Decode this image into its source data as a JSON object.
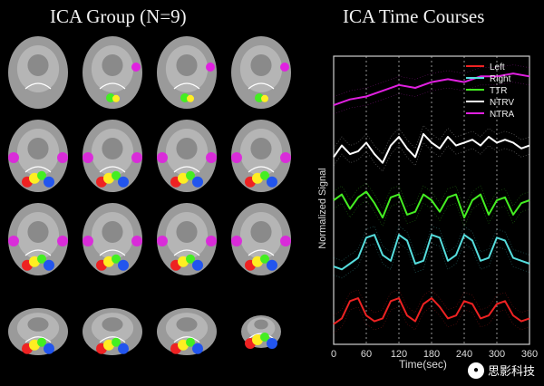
{
  "left_panel": {
    "title": "ICA Group (N=9)"
  },
  "right_panel": {
    "title": "ICA Time Courses"
  },
  "brain_grid": {
    "rows": 4,
    "cols": 4
  },
  "chart_data": {
    "type": "line",
    "title": "ICA Time Courses",
    "xlabel": "Time(sec)",
    "ylabel": "Normalized Signal",
    "xlim": [
      0,
      360
    ],
    "ylim": [
      0,
      10
    ],
    "x_ticks": [
      0,
      60,
      120,
      180,
      240,
      300,
      360
    ],
    "grid": "vertical dashed",
    "legend_position": "top-right",
    "series": [
      {
        "name": "NTRA",
        "color": "#e020e0",
        "x": [
          0,
          30,
          60,
          90,
          120,
          150,
          180,
          210,
          240,
          270,
          300,
          330,
          360
        ],
        "values": [
          8.3,
          8.5,
          8.6,
          8.8,
          9.0,
          8.9,
          9.1,
          9.2,
          9.1,
          9.3,
          9.3,
          9.4,
          9.3
        ]
      },
      {
        "name": "NTRV",
        "color": "#ffffff",
        "x": [
          0,
          15,
          30,
          45,
          60,
          75,
          90,
          105,
          120,
          135,
          150,
          165,
          180,
          195,
          210,
          225,
          240,
          255,
          270,
          285,
          300,
          315,
          330,
          345,
          360
        ],
        "values": [
          6.5,
          6.9,
          6.6,
          6.7,
          7.0,
          6.6,
          6.3,
          6.9,
          7.2,
          6.8,
          6.5,
          7.3,
          7.0,
          6.8,
          7.2,
          6.9,
          7.0,
          7.1,
          6.9,
          7.2,
          7.0,
          7.1,
          7.0,
          6.8,
          6.9
        ]
      },
      {
        "name": "TTR",
        "color": "#44ee22",
        "x": [
          0,
          15,
          30,
          45,
          60,
          75,
          90,
          105,
          120,
          135,
          150,
          165,
          180,
          195,
          210,
          225,
          240,
          255,
          270,
          285,
          300,
          315,
          330,
          345,
          360
        ],
        "values": [
          5.0,
          5.2,
          4.7,
          5.1,
          5.3,
          4.9,
          4.4,
          5.1,
          5.2,
          4.5,
          4.6,
          5.2,
          5.0,
          4.6,
          5.1,
          5.2,
          4.4,
          5.0,
          5.2,
          4.5,
          5.0,
          5.1,
          4.5,
          4.9,
          5.0
        ]
      },
      {
        "name": "Right",
        "color": "#55dddd",
        "x": [
          0,
          15,
          30,
          45,
          60,
          75,
          90,
          105,
          120,
          135,
          150,
          165,
          180,
          195,
          210,
          225,
          240,
          255,
          270,
          285,
          300,
          315,
          330,
          345,
          360
        ],
        "values": [
          2.7,
          2.6,
          2.8,
          3.0,
          3.7,
          3.8,
          3.1,
          2.9,
          3.8,
          3.6,
          2.8,
          2.9,
          3.8,
          3.7,
          2.9,
          3.1,
          3.8,
          3.6,
          2.9,
          3.0,
          3.7,
          3.6,
          3.0,
          2.9,
          2.8
        ]
      },
      {
        "name": "Left",
        "color": "#ee2222",
        "x": [
          0,
          15,
          30,
          45,
          60,
          75,
          90,
          105,
          120,
          135,
          150,
          165,
          180,
          195,
          210,
          225,
          240,
          255,
          270,
          285,
          300,
          315,
          330,
          345,
          360
        ],
        "values": [
          0.7,
          0.9,
          1.5,
          1.6,
          1.0,
          0.8,
          0.9,
          1.5,
          1.6,
          1.0,
          0.8,
          1.4,
          1.6,
          1.3,
          0.9,
          1.0,
          1.5,
          1.4,
          0.9,
          1.0,
          1.4,
          1.5,
          1.0,
          0.8,
          0.9
        ]
      }
    ],
    "legend": [
      {
        "label": "Left",
        "color": "#ee2222"
      },
      {
        "label": "Right",
        "color": "#55dddd"
      },
      {
        "label": "TTR",
        "color": "#44ee22"
      },
      {
        "label": "NTRV",
        "color": "#ffffff"
      },
      {
        "label": "NTRA",
        "color": "#e020e0"
      }
    ]
  },
  "watermark": {
    "text": "思影科技"
  }
}
